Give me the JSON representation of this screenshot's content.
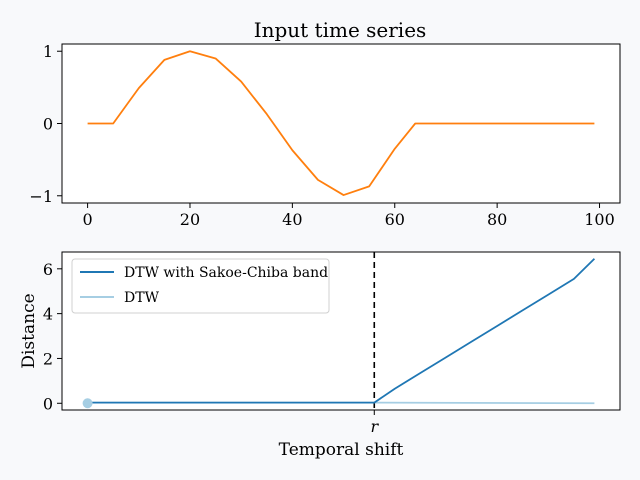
{
  "chart_data": [
    {
      "type": "line",
      "title": "Input time series",
      "xlabel": "",
      "ylabel": "",
      "xlim": [
        -5,
        104
      ],
      "ylim": [
        -1.1,
        1.1
      ],
      "xticks": [
        0,
        20,
        40,
        60,
        80,
        100
      ],
      "yticks": [
        -1,
        0,
        1
      ],
      "xtick_labels": [
        "0",
        "20",
        "40",
        "60",
        "80",
        "100"
      ],
      "ytick_labels": [
        "−1",
        "0",
        "1"
      ],
      "grid": false,
      "series": [
        {
          "color": "#ff7f0e",
          "x": [
            0,
            5,
            10,
            15,
            20,
            25,
            30,
            35,
            40,
            45,
            50,
            55,
            60,
            64,
            65,
            70,
            75,
            80,
            85,
            90,
            95,
            99
          ],
          "y": [
            0,
            0,
            0.49,
            0.88,
            1.0,
            0.9,
            0.58,
            0.13,
            -0.37,
            -0.78,
            -0.99,
            -0.87,
            -0.35,
            0,
            0,
            0,
            0,
            0,
            0,
            0,
            0,
            0
          ]
        }
      ]
    },
    {
      "type": "line",
      "title": "",
      "xlabel": "Temporal shift",
      "ylabel": "Distance",
      "xlim": [
        -5,
        104
      ],
      "ylim": [
        -0.3,
        6.75
      ],
      "xticks": [
        56
      ],
      "xtick_labels": [
        "r"
      ],
      "yticks": [
        0,
        2,
        4,
        6
      ],
      "ytick_labels": [
        "0",
        "2",
        "4",
        "6"
      ],
      "grid": false,
      "legend_position": "top-left",
      "vline": {
        "x": 56,
        "style": "dashed",
        "color": "#000000"
      },
      "series": [
        {
          "name": "DTW with Sakoe-Chiba band",
          "color": "#1f77b4",
          "x": [
            0,
            56,
            60,
            65,
            70,
            75,
            80,
            85,
            90,
            95,
            99
          ],
          "y": [
            0.03,
            0.03,
            0.65,
            1.35,
            2.05,
            2.75,
            3.45,
            4.15,
            4.85,
            5.55,
            6.45
          ]
        },
        {
          "name": "DTW",
          "color": "#a6cee3",
          "x": [
            0,
            56,
            99
          ],
          "y": [
            0.03,
            0.03,
            0.0
          ]
        }
      ],
      "markers": [
        {
          "x": 0,
          "y": 0,
          "color": "#a6cee3"
        }
      ]
    }
  ]
}
